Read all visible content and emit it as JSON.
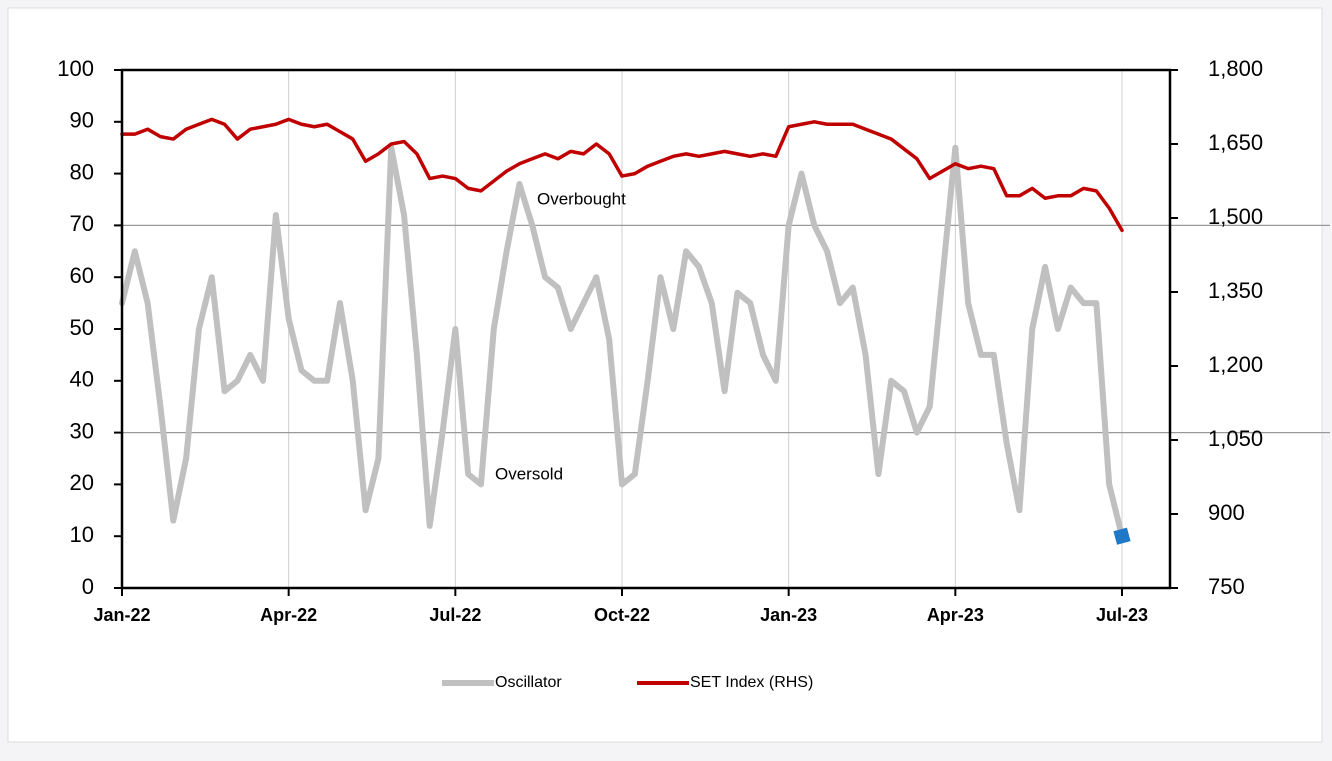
{
  "chart_data": {
    "type": "line",
    "categories": [
      "Jan-22",
      null,
      null,
      null,
      null,
      null,
      null,
      null,
      null,
      null,
      null,
      null,
      null,
      "Apr-22",
      null,
      null,
      null,
      null,
      null,
      null,
      null,
      null,
      null,
      null,
      null,
      null,
      "Jul-22",
      null,
      null,
      null,
      null,
      null,
      null,
      null,
      null,
      null,
      null,
      null,
      null,
      "Oct-22",
      null,
      null,
      null,
      null,
      null,
      null,
      null,
      null,
      null,
      null,
      null,
      null,
      "Jan-23",
      null,
      null,
      null,
      null,
      null,
      null,
      null,
      null,
      null,
      null,
      null,
      null,
      "Apr-23",
      null,
      null,
      null,
      null,
      null,
      null,
      null,
      null,
      null,
      null,
      null,
      null,
      "Jul-23"
    ],
    "series": [
      {
        "name": "Oscillator",
        "color": "#c0c0c0",
        "axis": "y",
        "values": [
          55,
          65,
          55,
          35,
          13,
          25,
          50,
          60,
          38,
          40,
          45,
          40,
          72,
          52,
          42,
          40,
          40,
          55,
          40,
          15,
          25,
          85,
          72,
          45,
          12,
          30,
          50,
          22,
          20,
          50,
          65,
          78,
          70,
          60,
          58,
          50,
          55,
          60,
          48,
          20,
          22,
          40,
          60,
          50,
          65,
          62,
          55,
          38,
          57,
          55,
          45,
          40,
          70,
          80,
          70,
          65,
          55,
          58,
          45,
          22,
          40,
          38,
          30,
          35,
          60,
          85,
          55,
          45,
          45,
          28,
          15,
          50,
          62,
          50,
          58,
          55,
          55,
          20,
          10
        ]
      },
      {
        "name": "SET Index (RHS)",
        "color": "#c00000",
        "axis": "y2",
        "values": [
          1670,
          1670,
          1680,
          1665,
          1660,
          1680,
          1690,
          1700,
          1690,
          1660,
          1680,
          1685,
          1690,
          1700,
          1690,
          1685,
          1690,
          1675,
          1660,
          1615,
          1630,
          1650,
          1655,
          1630,
          1580,
          1585,
          1580,
          1560,
          1555,
          1575,
          1595,
          1610,
          1620,
          1630,
          1620,
          1635,
          1630,
          1650,
          1630,
          1585,
          1590,
          1605,
          1615,
          1625,
          1630,
          1625,
          1630,
          1635,
          1630,
          1625,
          1630,
          1625,
          1685,
          1690,
          1695,
          1690,
          1690,
          1690,
          1680,
          1670,
          1660,
          1640,
          1620,
          1580,
          1595,
          1610,
          1600,
          1605,
          1600,
          1545,
          1545,
          1560,
          1540,
          1545,
          1545,
          1560,
          1555,
          1520,
          1475
        ]
      }
    ],
    "ylim": [
      0,
      100
    ],
    "yticks": [
      0,
      10,
      20,
      30,
      40,
      50,
      60,
      70,
      80,
      90,
      100
    ],
    "y2lim": [
      750,
      1800
    ],
    "y2ticks": [
      {
        "value": 750,
        "label": "750"
      },
      {
        "value": 900,
        "label": "900"
      },
      {
        "value": 1050,
        "label": "1,050"
      },
      {
        "value": 1200,
        "label": "1,200"
      },
      {
        "value": 1350,
        "label": "1,350"
      },
      {
        "value": 1500,
        "label": "1,500"
      },
      {
        "value": 1650,
        "label": "1,650"
      },
      {
        "value": 1800,
        "label": "1,800"
      }
    ],
    "reference_lines": [
      70,
      30
    ],
    "annotations": [
      "Overbought",
      "Oversold"
    ],
    "last_point_color": "#1f78c8",
    "grid": "x",
    "legend": "bottom"
  }
}
